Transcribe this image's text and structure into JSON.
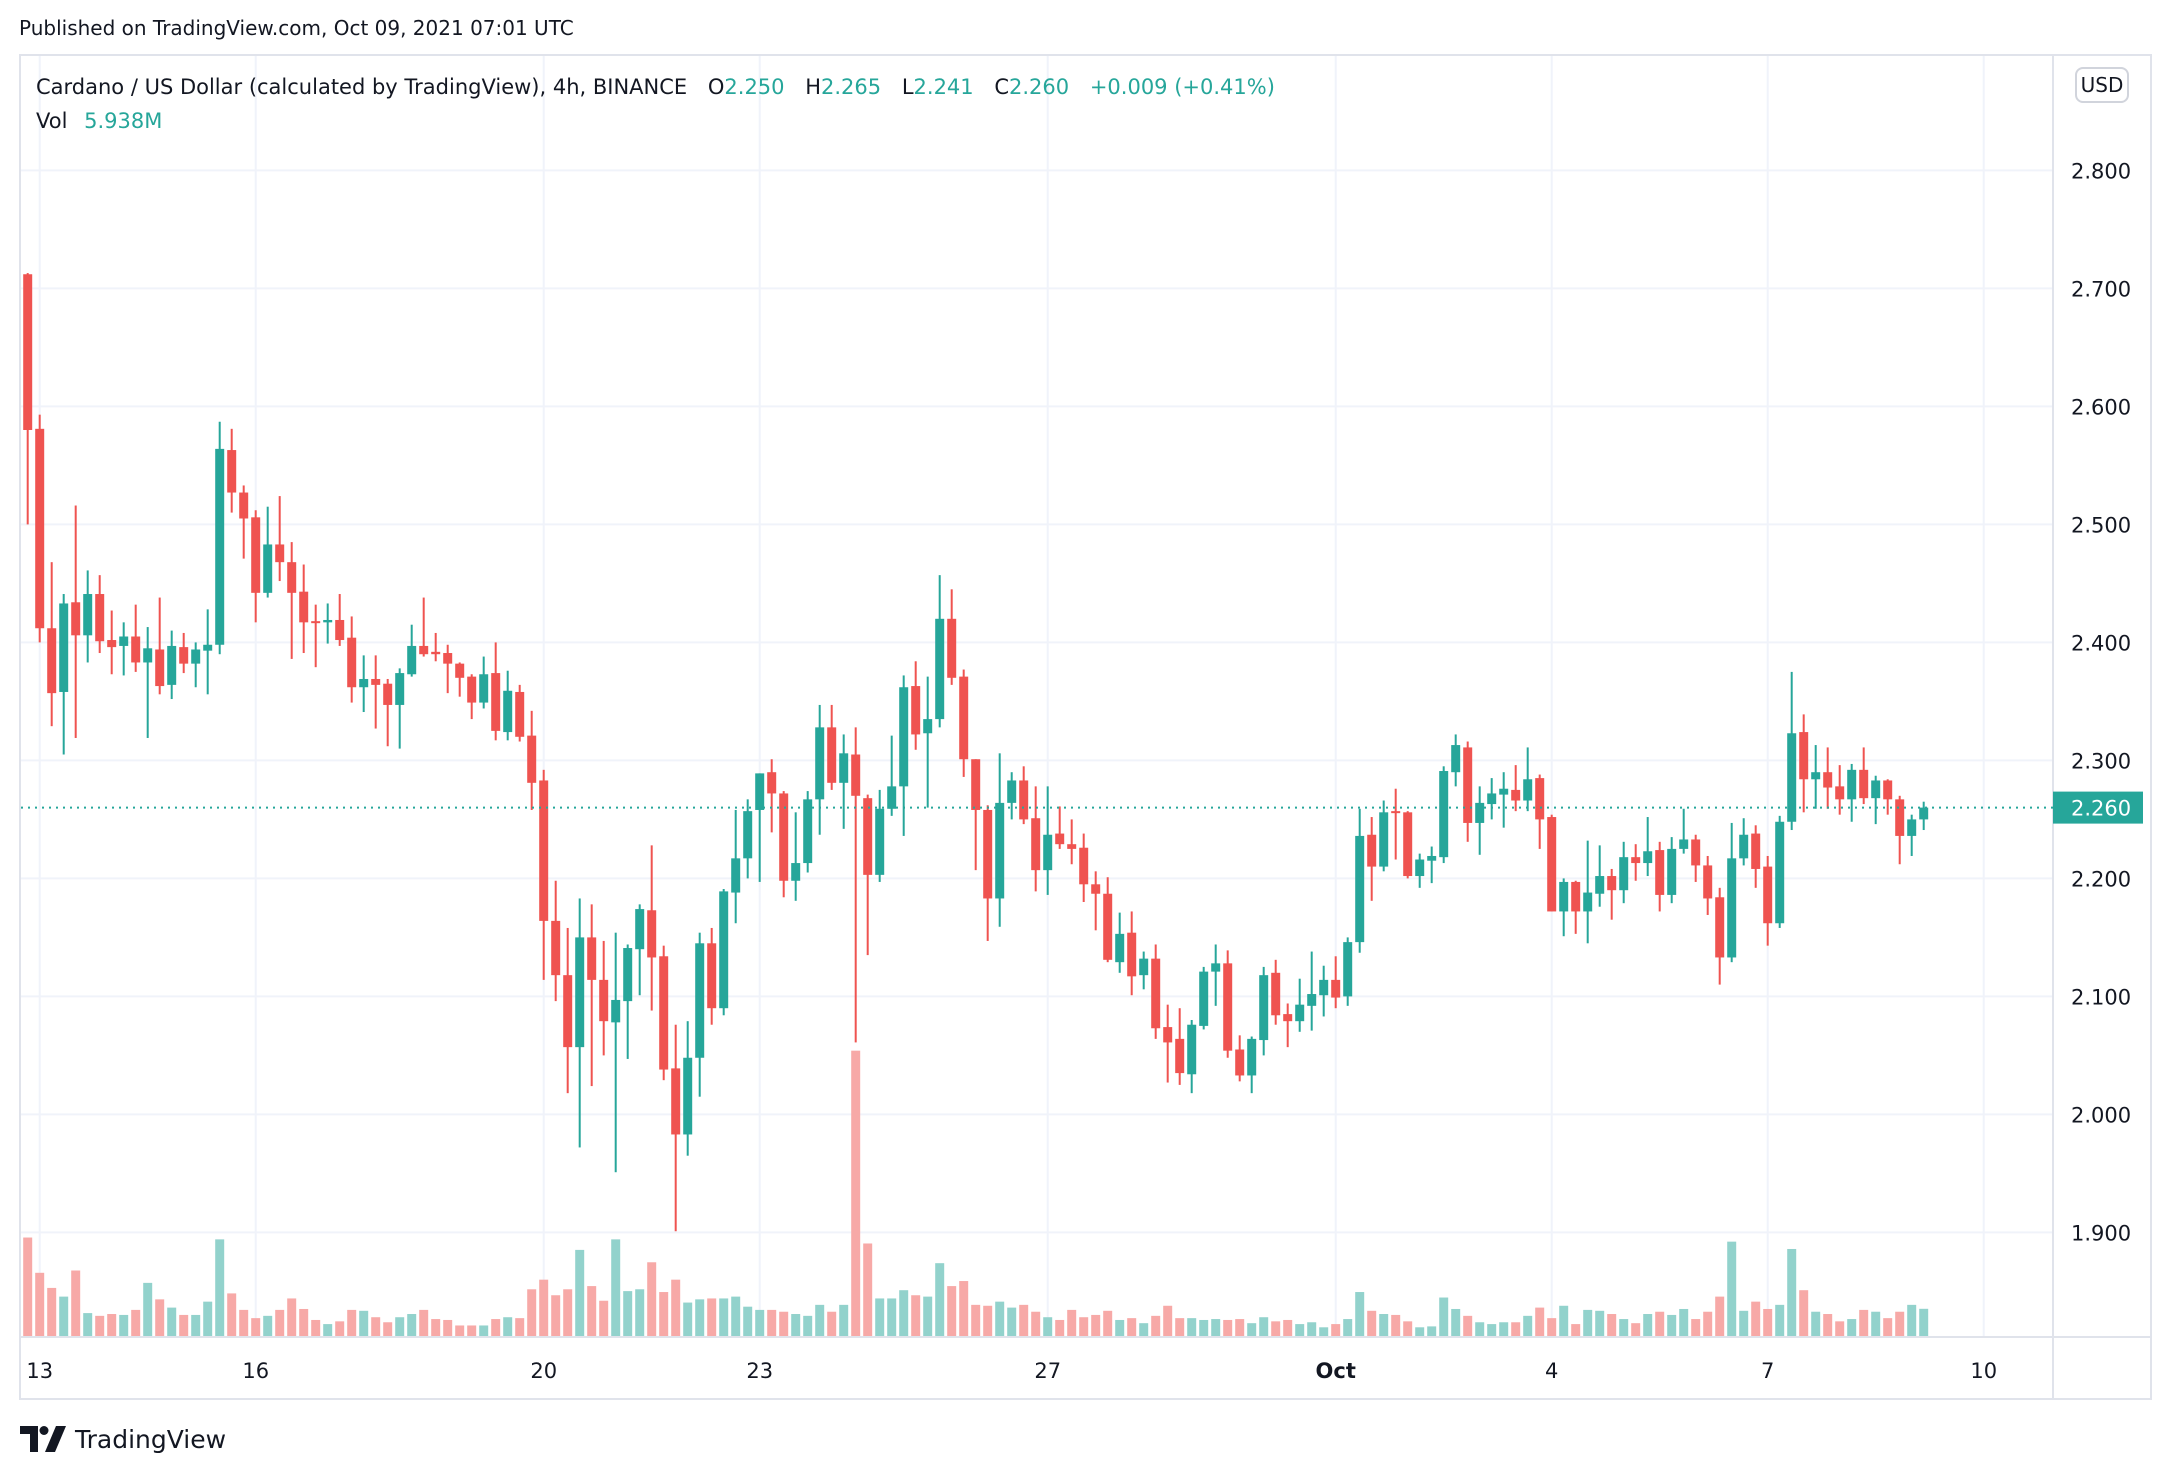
{
  "header": {
    "published": "Published on TradingView.com, Oct 09, 2021 07:01 UTC"
  },
  "legend": {
    "symbol": "Cardano / US Dollar (calculated by TradingView), 4h, BINANCE",
    "o_label": "O",
    "o": "2.250",
    "h_label": "H",
    "h": "2.265",
    "l_label": "L",
    "l": "2.241",
    "c_label": "C",
    "c": "2.260",
    "change": "+0.009 (+0.41%)",
    "vol_label": "Vol",
    "vol": "5.938M"
  },
  "price_axis": {
    "currency": "USD",
    "levels": [
      "2.800",
      "2.700",
      "2.600",
      "2.500",
      "2.400",
      "2.300",
      "2.200",
      "2.100",
      "2.000",
      "1.900"
    ],
    "last_price": "2.260"
  },
  "time_axis": {
    "ticks": [
      {
        "label": "13",
        "bar": 1
      },
      {
        "label": "16",
        "bar": 19
      },
      {
        "label": "20",
        "bar": 43
      },
      {
        "label": "23",
        "bar": 61
      },
      {
        "label": "27",
        "bar": 85
      },
      {
        "label": "Oct",
        "bar": 109,
        "bold": true
      },
      {
        "label": "4",
        "bar": 127
      },
      {
        "label": "7",
        "bar": 145
      },
      {
        "label": "10",
        "bar": 163
      }
    ]
  },
  "brand": {
    "name": "TradingView"
  },
  "colors": {
    "up": "#26a69a",
    "down": "#ef5350",
    "up_volume": "#92d2cc",
    "down_volume": "#f7a9a7",
    "grid": "#f0f3fa",
    "border": "#e0e3eb"
  },
  "chart_data": {
    "type": "candlestick",
    "title": "Cardano / US Dollar, 4h, BINANCE",
    "interval": "4h",
    "ylabel": "USD",
    "ylim": [
      1.9,
      2.8
    ],
    "grid": true,
    "ohlc_fields": [
      "open",
      "high",
      "low",
      "close"
    ],
    "ohlc": [
      [
        2.712,
        2.713,
        2.5,
        2.58
      ],
      [
        2.581,
        2.593,
        2.4,
        2.412
      ],
      [
        2.412,
        2.468,
        2.329,
        2.357
      ],
      [
        2.358,
        2.441,
        2.305,
        2.433
      ],
      [
        2.434,
        2.516,
        2.319,
        2.406
      ],
      [
        2.406,
        2.461,
        2.383,
        2.441
      ],
      [
        2.441,
        2.457,
        2.391,
        2.401
      ],
      [
        2.402,
        2.427,
        2.373,
        2.396
      ],
      [
        2.397,
        2.417,
        2.372,
        2.405
      ],
      [
        2.405,
        2.432,
        2.375,
        2.383
      ],
      [
        2.383,
        2.413,
        2.319,
        2.395
      ],
      [
        2.394,
        2.438,
        2.356,
        2.363
      ],
      [
        2.364,
        2.41,
        2.352,
        2.397
      ],
      [
        2.396,
        2.408,
        2.374,
        2.382
      ],
      [
        2.382,
        2.4,
        2.362,
        2.394
      ],
      [
        2.393,
        2.428,
        2.356,
        2.398
      ],
      [
        2.398,
        2.587,
        2.39,
        2.564
      ],
      [
        2.563,
        2.581,
        2.51,
        2.527
      ],
      [
        2.527,
        2.533,
        2.471,
        2.505
      ],
      [
        2.506,
        2.512,
        2.417,
        2.442
      ],
      [
        2.442,
        2.515,
        2.438,
        2.483
      ],
      [
        2.483,
        2.524,
        2.452,
        2.468
      ],
      [
        2.468,
        2.485,
        2.386,
        2.442
      ],
      [
        2.443,
        2.466,
        2.391,
        2.417
      ],
      [
        2.418,
        2.432,
        2.379,
        2.417
      ],
      [
        2.417,
        2.433,
        2.399,
        2.419
      ],
      [
        2.419,
        2.441,
        2.397,
        2.402
      ],
      [
        2.404,
        2.422,
        2.349,
        2.362
      ],
      [
        2.362,
        2.389,
        2.341,
        2.369
      ],
      [
        2.369,
        2.389,
        2.327,
        2.364
      ],
      [
        2.365,
        2.369,
        2.312,
        2.347
      ],
      [
        2.347,
        2.378,
        2.31,
        2.374
      ],
      [
        2.373,
        2.415,
        2.371,
        2.397
      ],
      [
        2.397,
        2.438,
        2.388,
        2.39
      ],
      [
        2.392,
        2.408,
        2.384,
        2.39
      ],
      [
        2.391,
        2.398,
        2.357,
        2.382
      ],
      [
        2.382,
        2.383,
        2.354,
        2.37
      ],
      [
        2.371,
        2.373,
        2.335,
        2.349
      ],
      [
        2.349,
        2.388,
        2.344,
        2.373
      ],
      [
        2.374,
        2.4,
        2.317,
        2.325
      ],
      [
        2.324,
        2.376,
        2.317,
        2.359
      ],
      [
        2.358,
        2.364,
        2.316,
        2.32
      ],
      [
        2.321,
        2.342,
        2.258,
        2.281
      ],
      [
        2.283,
        2.292,
        2.114,
        2.164
      ],
      [
        2.164,
        2.198,
        2.096,
        2.118
      ],
      [
        2.118,
        2.158,
        2.018,
        2.057
      ],
      [
        2.057,
        2.183,
        1.972,
        2.15
      ],
      [
        2.15,
        2.178,
        2.024,
        2.114
      ],
      [
        2.114,
        2.147,
        2.05,
        2.079
      ],
      [
        2.078,
        2.154,
        1.951,
        2.097
      ],
      [
        2.096,
        2.144,
        2.047,
        2.141
      ],
      [
        2.14,
        2.178,
        2.101,
        2.174
      ],
      [
        2.173,
        2.228,
        2.088,
        2.133
      ],
      [
        2.134,
        2.143,
        2.029,
        2.038
      ],
      [
        2.039,
        2.076,
        1.901,
        1.983
      ],
      [
        1.983,
        2.079,
        1.965,
        2.048
      ],
      [
        2.048,
        2.154,
        2.015,
        2.145
      ],
      [
        2.145,
        2.158,
        2.076,
        2.09
      ],
      [
        2.09,
        2.191,
        2.084,
        2.189
      ],
      [
        2.188,
        2.258,
        2.162,
        2.217
      ],
      [
        2.217,
        2.267,
        2.2,
        2.257
      ],
      [
        2.258,
        2.289,
        2.197,
        2.289
      ],
      [
        2.29,
        2.301,
        2.239,
        2.272
      ],
      [
        2.272,
        2.274,
        2.184,
        2.198
      ],
      [
        2.198,
        2.256,
        2.181,
        2.213
      ],
      [
        2.213,
        2.274,
        2.205,
        2.267
      ],
      [
        2.267,
        2.347,
        2.237,
        2.328
      ],
      [
        2.328,
        2.347,
        2.275,
        2.281
      ],
      [
        2.281,
        2.322,
        2.242,
        2.306
      ],
      [
        2.305,
        2.328,
        2.061,
        2.27
      ],
      [
        2.268,
        2.271,
        2.135,
        2.203
      ],
      [
        2.203,
        2.275,
        2.197,
        2.259
      ],
      [
        2.259,
        2.321,
        2.253,
        2.278
      ],
      [
        2.278,
        2.372,
        2.236,
        2.362
      ],
      [
        2.363,
        2.384,
        2.309,
        2.322
      ],
      [
        2.323,
        2.371,
        2.26,
        2.335
      ],
      [
        2.335,
        2.457,
        2.328,
        2.42
      ],
      [
        2.42,
        2.445,
        2.364,
        2.37
      ],
      [
        2.371,
        2.377,
        2.286,
        2.301
      ],
      [
        2.301,
        2.301,
        2.207,
        2.258
      ],
      [
        2.258,
        2.262,
        2.147,
        2.183
      ],
      [
        2.183,
        2.306,
        2.159,
        2.264
      ],
      [
        2.264,
        2.29,
        2.25,
        2.283
      ],
      [
        2.283,
        2.295,
        2.246,
        2.25
      ],
      [
        2.251,
        2.278,
        2.189,
        2.207
      ],
      [
        2.207,
        2.278,
        2.186,
        2.237
      ],
      [
        2.238,
        2.261,
        2.225,
        2.229
      ],
      [
        2.229,
        2.25,
        2.212,
        2.225
      ],
      [
        2.226,
        2.238,
        2.18,
        2.195
      ],
      [
        2.195,
        2.206,
        2.156,
        2.187
      ],
      [
        2.187,
        2.201,
        2.129,
        2.131
      ],
      [
        2.129,
        2.171,
        2.12,
        2.153
      ],
      [
        2.154,
        2.172,
        2.101,
        2.117
      ],
      [
        2.118,
        2.138,
        2.106,
        2.132
      ],
      [
        2.132,
        2.144,
        2.064,
        2.073
      ],
      [
        2.074,
        2.093,
        2.027,
        2.061
      ],
      [
        2.064,
        2.09,
        2.025,
        2.035
      ],
      [
        2.034,
        2.08,
        2.018,
        2.076
      ],
      [
        2.075,
        2.125,
        2.072,
        2.121
      ],
      [
        2.121,
        2.144,
        2.092,
        2.128
      ],
      [
        2.128,
        2.139,
        2.048,
        2.054
      ],
      [
        2.055,
        2.067,
        2.028,
        2.033
      ],
      [
        2.033,
        2.066,
        2.018,
        2.064
      ],
      [
        2.063,
        2.125,
        2.05,
        2.118
      ],
      [
        2.12,
        2.131,
        2.076,
        2.084
      ],
      [
        2.085,
        2.094,
        2.057,
        2.079
      ],
      [
        2.079,
        2.115,
        2.07,
        2.093
      ],
      [
        2.092,
        2.138,
        2.071,
        2.102
      ],
      [
        2.101,
        2.126,
        2.083,
        2.114
      ],
      [
        2.114,
        2.134,
        2.09,
        2.099
      ],
      [
        2.1,
        2.15,
        2.092,
        2.146
      ],
      [
        2.146,
        2.259,
        2.137,
        2.236
      ],
      [
        2.237,
        2.252,
        2.181,
        2.21
      ],
      [
        2.21,
        2.266,
        2.206,
        2.256
      ],
      [
        2.257,
        2.276,
        2.216,
        2.256
      ],
      [
        2.256,
        2.257,
        2.2,
        2.202
      ],
      [
        2.202,
        2.221,
        2.192,
        2.216
      ],
      [
        2.215,
        2.227,
        2.196,
        2.219
      ],
      [
        2.218,
        2.295,
        2.213,
        2.291
      ],
      [
        2.29,
        2.322,
        2.278,
        2.313
      ],
      [
        2.311,
        2.316,
        2.231,
        2.247
      ],
      [
        2.247,
        2.278,
        2.22,
        2.264
      ],
      [
        2.263,
        2.285,
        2.25,
        2.272
      ],
      [
        2.271,
        2.29,
        2.243,
        2.276
      ],
      [
        2.275,
        2.296,
        2.257,
        2.266
      ],
      [
        2.266,
        2.311,
        2.257,
        2.284
      ],
      [
        2.285,
        2.288,
        2.225,
        2.25
      ],
      [
        2.252,
        2.254,
        2.172,
        2.172
      ],
      [
        2.172,
        2.2,
        2.151,
        2.197
      ],
      [
        2.197,
        2.198,
        2.153,
        2.172
      ],
      [
        2.172,
        2.232,
        2.145,
        2.188
      ],
      [
        2.187,
        2.228,
        2.176,
        2.202
      ],
      [
        2.202,
        2.208,
        2.165,
        2.19
      ],
      [
        2.19,
        2.231,
        2.179,
        2.218
      ],
      [
        2.218,
        2.229,
        2.198,
        2.213
      ],
      [
        2.213,
        2.252,
        2.202,
        2.223
      ],
      [
        2.224,
        2.231,
        2.172,
        2.186
      ],
      [
        2.186,
        2.235,
        2.179,
        2.225
      ],
      [
        2.225,
        2.259,
        2.221,
        2.233
      ],
      [
        2.233,
        2.237,
        2.197,
        2.211
      ],
      [
        2.211,
        2.219,
        2.169,
        2.183
      ],
      [
        2.184,
        2.192,
        2.11,
        2.133
      ],
      [
        2.133,
        2.247,
        2.129,
        2.217
      ],
      [
        2.217,
        2.251,
        2.211,
        2.237
      ],
      [
        2.238,
        2.245,
        2.192,
        2.208
      ],
      [
        2.21,
        2.219,
        2.143,
        2.162
      ],
      [
        2.162,
        2.253,
        2.158,
        2.248
      ],
      [
        2.248,
        2.375,
        2.241,
        2.323
      ],
      [
        2.324,
        2.339,
        2.256,
        2.284
      ],
      [
        2.284,
        2.313,
        2.259,
        2.29
      ],
      [
        2.29,
        2.311,
        2.259,
        2.277
      ],
      [
        2.278,
        2.296,
        2.254,
        2.267
      ],
      [
        2.267,
        2.297,
        2.248,
        2.292
      ],
      [
        2.292,
        2.311,
        2.263,
        2.268
      ],
      [
        2.268,
        2.287,
        2.246,
        2.283
      ],
      [
        2.283,
        2.284,
        2.254,
        2.267
      ],
      [
        2.267,
        2.27,
        2.212,
        2.236
      ],
      [
        2.236,
        2.254,
        2.219,
        2.25
      ],
      [
        2.25,
        2.265,
        2.241,
        2.26
      ]
    ],
    "volume_unit": "M",
    "volume": [
      21.5,
      13.8,
      10.5,
      8.6,
      14.3,
      5.0,
      4.4,
      4.8,
      4.6,
      5.7,
      11.6,
      8.0,
      6.2,
      4.6,
      4.6,
      7.5,
      21.1,
      9.3,
      5.7,
      3.9,
      4.4,
      5.7,
      8.2,
      5.9,
      3.5,
      2.6,
      3.2,
      5.7,
      5.5,
      4.1,
      3.0,
      4.1,
      4.8,
      5.7,
      3.7,
      3.5,
      2.3,
      2.3,
      2.3,
      3.7,
      4.1,
      3.9,
      10.2,
      12.3,
      8.9,
      10.2,
      18.8,
      10.9,
      7.7,
      21.1,
      9.8,
      10.2,
      16.1,
      9.6,
      12.3,
      7.3,
      8.0,
      8.2,
      8.2,
      8.6,
      6.4,
      5.7,
      5.7,
      5.3,
      4.8,
      4.4,
      6.8,
      5.3,
      6.8,
      62.3,
      20.2,
      8.2,
      8.2,
      10.0,
      8.9,
      8.6,
      15.9,
      10.9,
      12.0,
      6.8,
      6.6,
      7.5,
      6.2,
      6.8,
      5.3,
      4.1,
      3.5,
      5.7,
      4.1,
      4.6,
      5.5,
      3.5,
      3.9,
      2.8,
      4.4,
      6.6,
      3.9,
      3.9,
      3.5,
      3.7,
      3.5,
      3.7,
      2.8,
      4.1,
      3.2,
      3.5,
      2.6,
      3.0,
      1.9,
      2.6,
      3.7,
      9.6,
      5.5,
      4.8,
      4.6,
      3.2,
      1.9,
      2.1,
      8.4,
      5.9,
      4.4,
      3.0,
      2.6,
      3.0,
      3.0,
      4.4,
      6.2,
      3.9,
      6.6,
      2.6,
      5.7,
      5.5,
      4.8,
      3.7,
      2.8,
      4.8,
      5.3,
      4.6,
      5.9,
      3.7,
      5.3,
      8.6,
      20.6,
      5.5,
      7.5,
      5.9,
      6.8,
      19.0,
      10.0,
      5.3,
      4.8,
      3.2,
      3.7,
      5.7,
      5.3,
      3.9,
      5.3,
      6.8,
      5.938
    ]
  }
}
